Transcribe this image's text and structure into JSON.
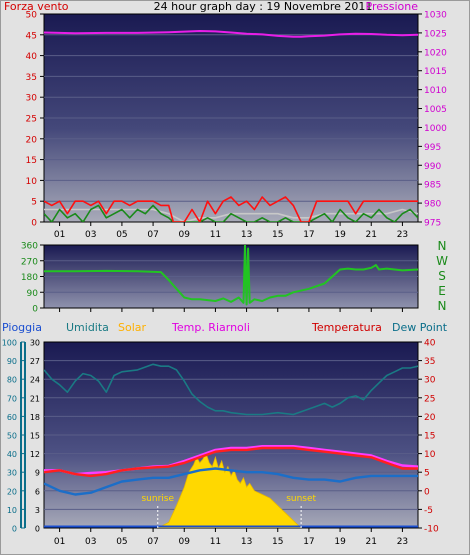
{
  "chart_data": [
    {
      "type": "line",
      "title": "24 hour graph day : 19 Novembre 2011",
      "left_label": "Forza vento",
      "right_label": "Pressione",
      "x_ticks": [
        "01",
        "03",
        "05",
        "07",
        "09",
        "11",
        "13",
        "15",
        "17",
        "19",
        "21",
        "23"
      ],
      "left_ticks": [
        "0",
        "5",
        "10",
        "15",
        "20",
        "25",
        "30",
        "35",
        "40",
        "45",
        "50"
      ],
      "right_ticks": [
        "975",
        "980",
        "985",
        "990",
        "995",
        "1000",
        "1005",
        "1010",
        "1015",
        "1020",
        "1025",
        "1030"
      ],
      "left_range": [
        0,
        50
      ],
      "right_range": [
        975,
        1030
      ],
      "x_range": [
        0,
        24
      ],
      "series": [
        {
          "name": "Pressione",
          "color": "#e81ee8",
          "axis": "right",
          "x": [
            0,
            2,
            4,
            6,
            8,
            10,
            11,
            12,
            13,
            14,
            15,
            16,
            16.5,
            17,
            18,
            19,
            20,
            21,
            22,
            23,
            24
          ],
          "y": [
            1025.1,
            1024.9,
            1025.0,
            1025.0,
            1025.2,
            1025.5,
            1025.4,
            1025.1,
            1024.8,
            1024.6,
            1024.2,
            1024.0,
            1024.0,
            1024.1,
            1024.3,
            1024.6,
            1024.8,
            1024.7,
            1024.5,
            1024.4,
            1024.5
          ]
        },
        {
          "color": "#ff1010",
          "axis": "left",
          "x": [
            0,
            0.5,
            1,
            1.5,
            2,
            2.5,
            3,
            3.5,
            4,
            4.5,
            5,
            5.5,
            6,
            6.5,
            7,
            7.5,
            8,
            8.3,
            9,
            9.5,
            10,
            10.5,
            11,
            11.5,
            12,
            12.5,
            13,
            13.5,
            14,
            14.5,
            15,
            15.5,
            16,
            16.5,
            17,
            17.5,
            18,
            18.5,
            19,
            19.5,
            20,
            20.5,
            21,
            21.5,
            22,
            22.5,
            23,
            23.5,
            24
          ],
          "y": [
            5,
            4,
            5,
            2,
            5,
            5,
            4,
            5,
            2,
            5,
            5,
            4,
            5,
            5,
            5,
            4,
            4,
            0,
            0,
            3,
            0,
            5,
            2,
            5,
            6,
            4,
            5,
            3,
            6,
            4,
            5,
            6,
            4,
            0,
            0,
            5,
            5,
            5,
            5,
            5,
            2,
            5,
            5,
            5,
            5,
            5,
            5,
            5,
            5
          ]
        },
        {
          "color": "#1a8a1a",
          "axis": "left",
          "x": [
            0,
            0.5,
            1,
            1.5,
            2,
            2.5,
            3,
            3.5,
            4,
            4.5,
            5,
            5.5,
            6,
            6.5,
            7,
            7.5,
            8,
            8.3,
            9,
            9.5,
            10,
            10.5,
            11,
            11.5,
            12,
            12.5,
            13,
            13.5,
            14,
            14.5,
            15,
            15.5,
            16,
            16.5,
            17,
            17.5,
            18,
            18.5,
            19,
            19.5,
            20,
            20.5,
            21,
            21.5,
            22,
            22.5,
            23,
            23.5,
            24
          ],
          "y": [
            2,
            0,
            3,
            1,
            2,
            0,
            3,
            4,
            1,
            2,
            3,
            1,
            3,
            2,
            4,
            2,
            1,
            0,
            0,
            0,
            0,
            1,
            0,
            0,
            2,
            1,
            0,
            0,
            1,
            0,
            0,
            1,
            0,
            0,
            0,
            1,
            2,
            0,
            3,
            1,
            0,
            2,
            1,
            3,
            1,
            0,
            2,
            3,
            1
          ]
        },
        {
          "color": "#c8c8c8",
          "axis": "left",
          "x": [
            0,
            2,
            4,
            6,
            7,
            8,
            9,
            10,
            11,
            12,
            13,
            14,
            15,
            16,
            17,
            18,
            19,
            20,
            21,
            22,
            23,
            24
          ],
          "y": [
            3,
            3,
            3,
            3,
            3,
            2,
            0,
            1,
            1,
            2,
            2,
            2,
            2,
            1,
            1,
            2,
            2,
            2,
            2,
            2,
            3,
            2
          ]
        }
      ]
    },
    {
      "type": "line",
      "x_ticks": [
        "01",
        "03",
        "05",
        "07",
        "09",
        "11",
        "13",
        "15",
        "17",
        "19",
        "21",
        "23"
      ],
      "left_ticks": [
        "0",
        "90",
        "180",
        "270",
        "360"
      ],
      "right_ticks": [
        "N",
        "W",
        "S",
        "E",
        "N"
      ],
      "left_range": [
        0,
        360
      ],
      "x_range": [
        0,
        24
      ],
      "series": [
        {
          "color": "#22c422",
          "x": [
            0,
            2,
            4,
            6,
            7.5,
            8,
            8.5,
            9,
            9.5,
            10,
            11,
            11.5,
            12,
            12.5,
            12.8,
            12.9,
            13,
            13.1,
            13.2,
            13.5,
            14,
            14.5,
            15,
            15.5,
            16,
            17,
            18,
            19,
            19.5,
            20,
            20.5,
            21,
            21.3,
            21.5,
            22,
            23,
            24
          ],
          "y": [
            210,
            210,
            212,
            210,
            205,
            160,
            110,
            60,
            50,
            50,
            40,
            55,
            35,
            60,
            30,
            360,
            20,
            340,
            30,
            50,
            40,
            60,
            70,
            70,
            90,
            110,
            140,
            220,
            225,
            220,
            220,
            230,
            245,
            220,
            225,
            215,
            220
          ]
        }
      ]
    },
    {
      "type": "area",
      "left_labels": [
        "Pioggia",
        "Umidita",
        "Solar"
      ],
      "right_labels": [
        "Temp. Riarnoli",
        "Temperatura",
        "Dew Point"
      ],
      "x_ticks": [
        "01",
        "03",
        "05",
        "07",
        "09",
        "11",
        "13",
        "15",
        "17",
        "19",
        "21",
        "23"
      ],
      "axis1_ticks": [
        "0",
        "10",
        "20",
        "30",
        "40",
        "50",
        "60",
        "70",
        "80",
        "90",
        "100"
      ],
      "axis2_ticks": [
        "0",
        "3",
        "6",
        "9",
        "12",
        "15",
        "18",
        "21",
        "24",
        "27",
        "30"
      ],
      "temp_ticks": [
        "-10",
        "-5",
        "0",
        "5",
        "10",
        "15",
        "20",
        "25",
        "30",
        "35",
        "40"
      ],
      "temp_range": [
        -10,
        40
      ],
      "x_range": [
        0,
        24
      ],
      "annotations": [
        {
          "text": "sunrise",
          "x": 7.3
        },
        {
          "text": "sunset",
          "x": 16.5
        }
      ],
      "series": [
        {
          "name": "Solar",
          "color": "#ffd800",
          "axis": "percent",
          "x": [
            7.3,
            8,
            8.5,
            9,
            9.3,
            9.6,
            9.8,
            10,
            10.2,
            10.4,
            10.6,
            10.8,
            11,
            11.2,
            11.4,
            11.6,
            11.8,
            12,
            12.2,
            12.4,
            12.6,
            12.8,
            13,
            13.2,
            13.5,
            14,
            14.5,
            15,
            15.5,
            16,
            16.5
          ],
          "y": [
            0,
            3,
            12,
            22,
            30,
            34,
            38,
            35,
            37,
            40,
            35,
            33,
            38,
            32,
            36,
            30,
            33,
            28,
            31,
            26,
            24,
            27,
            22,
            24,
            20,
            18,
            16,
            12,
            8,
            4,
            0
          ]
        },
        {
          "name": "Temp. Riarnoli",
          "color": "#ff3cff",
          "axis": "temp",
          "x": [
            0,
            1,
            2,
            3,
            4,
            5,
            6,
            7,
            8,
            9,
            10,
            11,
            12,
            13,
            14,
            15,
            16,
            17,
            18,
            19,
            20,
            21,
            22,
            23,
            24
          ],
          "y": [
            5.5,
            5.5,
            4.5,
            4.8,
            5,
            5.5,
            6,
            6.5,
            6.7,
            8,
            9.5,
            11,
            11.5,
            11.5,
            12,
            12,
            12,
            11.5,
            11,
            10.5,
            10,
            9.5,
            8,
            6.8,
            6.5
          ]
        },
        {
          "name": "Temperatura",
          "color": "#ff1f1f",
          "axis": "temp",
          "x": [
            0,
            1,
            2,
            3,
            4,
            5,
            6,
            7,
            8,
            9,
            10,
            11,
            12,
            13,
            14,
            15,
            16,
            17,
            18,
            19,
            20,
            21,
            22,
            23,
            24
          ],
          "y": [
            5,
            5.5,
            4.5,
            4,
            4.5,
            5.5,
            6,
            6.3,
            6.5,
            7.5,
            9,
            10.5,
            11,
            11,
            11.5,
            11.5,
            11.5,
            11,
            10.5,
            10,
            9.5,
            9,
            7.5,
            6,
            6
          ]
        },
        {
          "name": "Dew Point",
          "color": "#1c6ec8",
          "axis": "temp",
          "x": [
            0,
            1,
            2,
            3,
            4,
            5,
            6,
            7,
            8,
            9,
            10,
            11,
            12,
            13,
            14,
            15,
            16,
            17,
            18,
            19,
            20,
            21,
            22,
            23,
            24
          ],
          "y": [
            2,
            0,
            -1,
            -0.5,
            1,
            2.5,
            3,
            3.5,
            3.5,
            4.5,
            5.5,
            6,
            5.5,
            5,
            5,
            4.5,
            3.5,
            3,
            3,
            2.5,
            3.5,
            4,
            4,
            4,
            4
          ]
        },
        {
          "name": "Umidita",
          "color": "#1a7a84",
          "axis": "percent",
          "x": [
            0,
            0.5,
            1,
            1.5,
            2,
            2.5,
            3,
            3.5,
            4,
            4.5,
            5,
            6,
            7,
            7.5,
            8,
            8.5,
            9,
            9.5,
            10,
            10.5,
            11,
            11.5,
            12,
            13,
            14,
            15,
            16,
            17,
            18,
            18.5,
            19,
            19.5,
            20,
            20.5,
            21,
            21.5,
            22,
            22.5,
            23,
            23.5,
            24
          ],
          "y": [
            85,
            80,
            77,
            73,
            79,
            83,
            82,
            79,
            73,
            82,
            84,
            85,
            88,
            87,
            87,
            85,
            79,
            72,
            68,
            65,
            63,
            63,
            62,
            61,
            61,
            62,
            61,
            64,
            67,
            65,
            67,
            70,
            71,
            69,
            74,
            78,
            82,
            84,
            86,
            86,
            87
          ]
        }
      ]
    }
  ]
}
